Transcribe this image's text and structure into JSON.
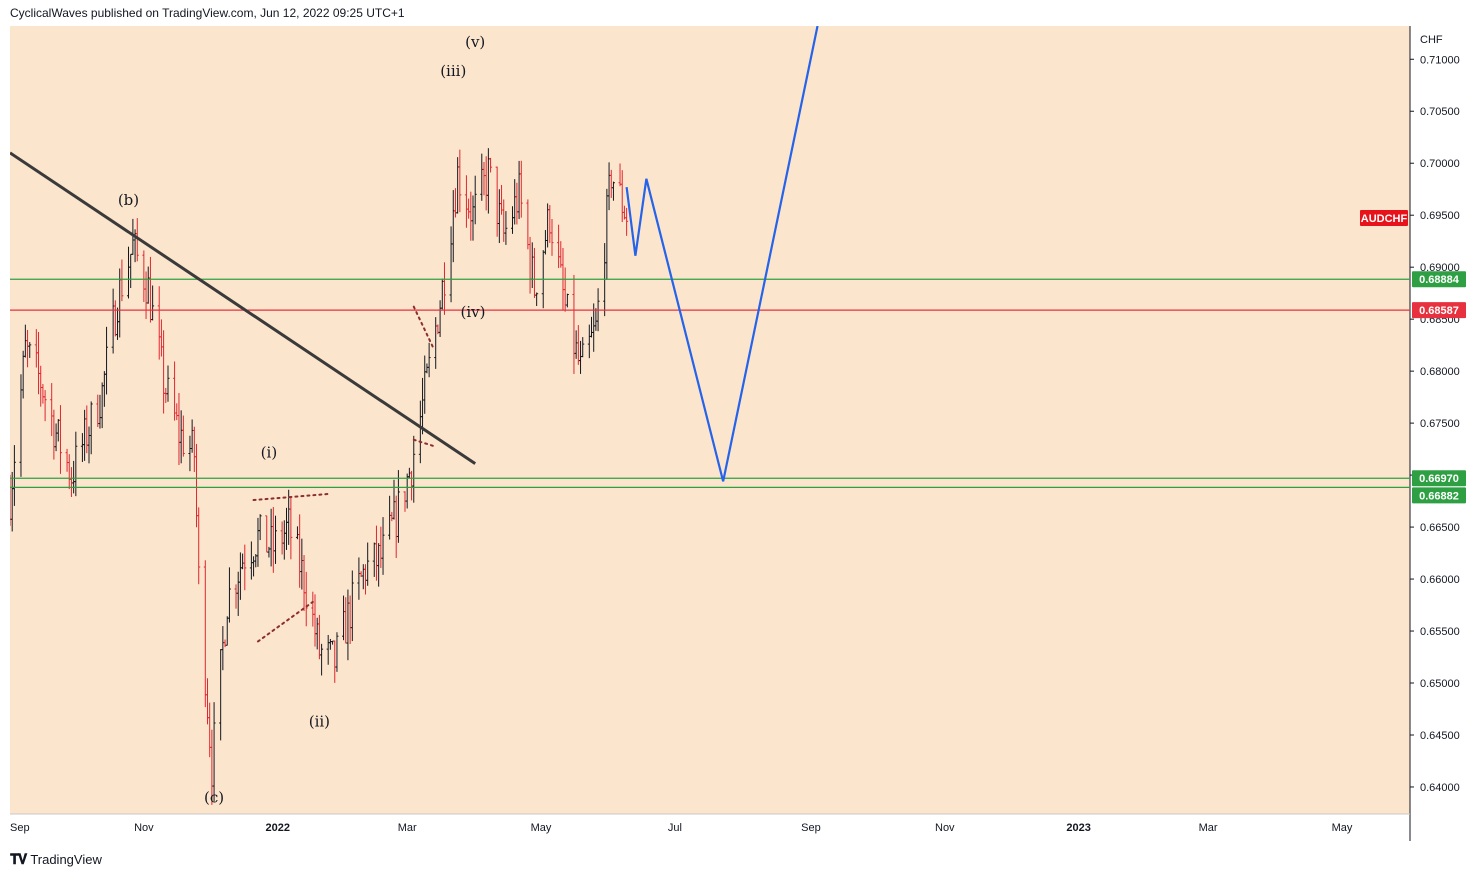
{
  "header": {
    "text": "CyclicalWaves published on TradingView.com, Jun 12, 2022 09:25 UTC+1"
  },
  "footer": {
    "logo_text": "TradingView"
  },
  "colors": {
    "background": "#fbe5cc",
    "candle_up": "#131722",
    "candle_down": "#e0262f",
    "support_green": "#2ea043",
    "resistance_red": "#e8313f",
    "projection_blue": "#2563eb",
    "trendline": "#3a3a3a",
    "symbol_badge": "#e8131a"
  },
  "chart_data": {
    "type": "candlestick",
    "symbol": "AUDCHF",
    "currency": "CHF",
    "x_ticks": [
      "Sep",
      "Nov",
      "2022",
      "Mar",
      "May",
      "Jul",
      "Sep",
      "Nov",
      "2023",
      "Mar",
      "May"
    ],
    "y_ticks": [
      "0.71000",
      "0.70500",
      "0.70000",
      "0.69500",
      "0.69000",
      "0.68500",
      "0.68000",
      "0.67500",
      "0.67000",
      "0.66500",
      "0.66000",
      "0.65500",
      "0.65000",
      "0.64500",
      "0.64000"
    ],
    "ylim": [
      0.6374,
      0.7132
    ],
    "xlim": [
      "2021-09-01",
      "2023-06-01"
    ],
    "horizontal_levels": [
      {
        "value": 0.68884,
        "label": "0.68884",
        "color": "green"
      },
      {
        "value": 0.68587,
        "label": "0.68587",
        "color": "red"
      },
      {
        "value": 0.6697,
        "label": "0.66970",
        "color": "green"
      },
      {
        "value": 0.66882,
        "label": "0.66882",
        "color": "green"
      }
    ],
    "wave_labels": [
      {
        "text": "(b)",
        "date": "2021-10-25",
        "value": 0.696
      },
      {
        "text": "(c)",
        "date": "2021-12-03",
        "value": 0.6385
      },
      {
        "text": "(i)",
        "date": "2021-12-28",
        "value": 0.6717
      },
      {
        "text": "(ii)",
        "date": "2022-01-20",
        "value": 0.6458
      },
      {
        "text": "(iii)",
        "date": "2022-03-22",
        "value": 0.7084
      },
      {
        "text": "(iv)",
        "date": "2022-03-31",
        "value": 0.6852
      },
      {
        "text": "(v)",
        "date": "2022-04-01",
        "value": 0.7112
      }
    ],
    "trendline": [
      {
        "date": "2021-09-01",
        "value": 0.701
      },
      {
        "date": "2022-04-01",
        "value": 0.6711
      }
    ],
    "projection": [
      {
        "date": "2022-06-09",
        "value": 0.6977
      },
      {
        "date": "2022-06-13",
        "value": 0.6911
      },
      {
        "date": "2022-06-18",
        "value": 0.6985
      },
      {
        "date": "2022-07-23",
        "value": 0.6694
      },
      {
        "date": "2022-09-04",
        "value": 0.7132
      }
    ],
    "triangle_lines": [
      [
        {
          "date": "2021-12-21",
          "value": 0.6676
        },
        {
          "date": "2022-01-25",
          "value": 0.6682
        }
      ],
      [
        {
          "date": "2021-12-23",
          "value": 0.654
        },
        {
          "date": "2022-01-17",
          "value": 0.6578
        }
      ],
      [
        {
          "date": "2022-03-04",
          "value": 0.6862
        },
        {
          "date": "2022-03-13",
          "value": 0.6822
        }
      ],
      [
        {
          "date": "2022-03-04",
          "value": 0.6734
        },
        {
          "date": "2022-03-13",
          "value": 0.6728
        }
      ]
    ],
    "price_path": [
      [
        "2021-09-01",
        0.668
      ],
      [
        "2021-09-08",
        0.682
      ],
      [
        "2021-09-15",
        0.679
      ],
      [
        "2021-09-22",
        0.674
      ],
      [
        "2021-09-29",
        0.67
      ],
      [
        "2021-10-06",
        0.674
      ],
      [
        "2021-10-13",
        0.678
      ],
      [
        "2021-10-20",
        0.687
      ],
      [
        "2021-10-27",
        0.692
      ],
      [
        "2021-11-03",
        0.688
      ],
      [
        "2021-11-10",
        0.679
      ],
      [
        "2021-11-17",
        0.674
      ],
      [
        "2021-11-24",
        0.672
      ],
      [
        "2021-11-26",
        0.66
      ],
      [
        "2021-12-02",
        0.642
      ],
      [
        "2021-12-09",
        0.658
      ],
      [
        "2021-12-16",
        0.662
      ],
      [
        "2021-12-23",
        0.664
      ],
      [
        "2021-12-30",
        0.663
      ],
      [
        "2022-01-06",
        0.665
      ],
      [
        "2022-01-13",
        0.66
      ],
      [
        "2022-01-20",
        0.653
      ],
      [
        "2022-01-27",
        0.652
      ],
      [
        "2022-02-03",
        0.657
      ],
      [
        "2022-02-10",
        0.661
      ],
      [
        "2022-02-17",
        0.662
      ],
      [
        "2022-02-24",
        0.666
      ],
      [
        "2022-03-03",
        0.671
      ],
      [
        "2022-03-10",
        0.679
      ],
      [
        "2022-03-17",
        0.688
      ],
      [
        "2022-03-24",
        0.699
      ],
      [
        "2022-03-31",
        0.695
      ],
      [
        "2022-04-07",
        0.699
      ],
      [
        "2022-04-14",
        0.693
      ],
      [
        "2022-04-21",
        0.697
      ],
      [
        "2022-04-28",
        0.688
      ],
      [
        "2022-05-05",
        0.695
      ],
      [
        "2022-05-12",
        0.686
      ],
      [
        "2022-05-19",
        0.68
      ],
      [
        "2022-05-26",
        0.684
      ],
      [
        "2022-06-02",
        0.699
      ],
      [
        "2022-06-09",
        0.695
      ]
    ]
  }
}
